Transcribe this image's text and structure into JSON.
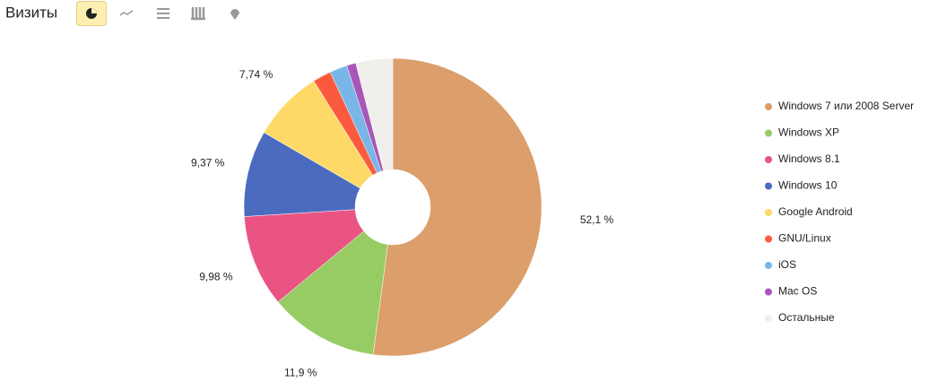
{
  "chart_data": {
    "type": "donut",
    "title": "Визиты",
    "categories": [
      "Windows 7 или 2008 Server",
      "Windows XP",
      "Windows 8.1",
      "Windows 10",
      "Google Android",
      "GNU/Linux",
      "iOS",
      "Mac OS",
      "Остальные"
    ],
    "values": [
      52.1,
      11.9,
      9.98,
      9.37,
      7.74,
      2.0,
      1.9,
      1.0,
      4.0
    ],
    "value_labels": [
      "52,1 %",
      "11,9 %",
      "9,98 %",
      "9,37 %",
      "7,74 %",
      null,
      null,
      null,
      null
    ],
    "colors": [
      "#dc9e6a",
      "#97cc64",
      "#ea5482",
      "#4a6bbf",
      "#fed967",
      "#fc5a3e",
      "#78b6e8",
      "#a856b8",
      "#f1efeb"
    ]
  }
}
